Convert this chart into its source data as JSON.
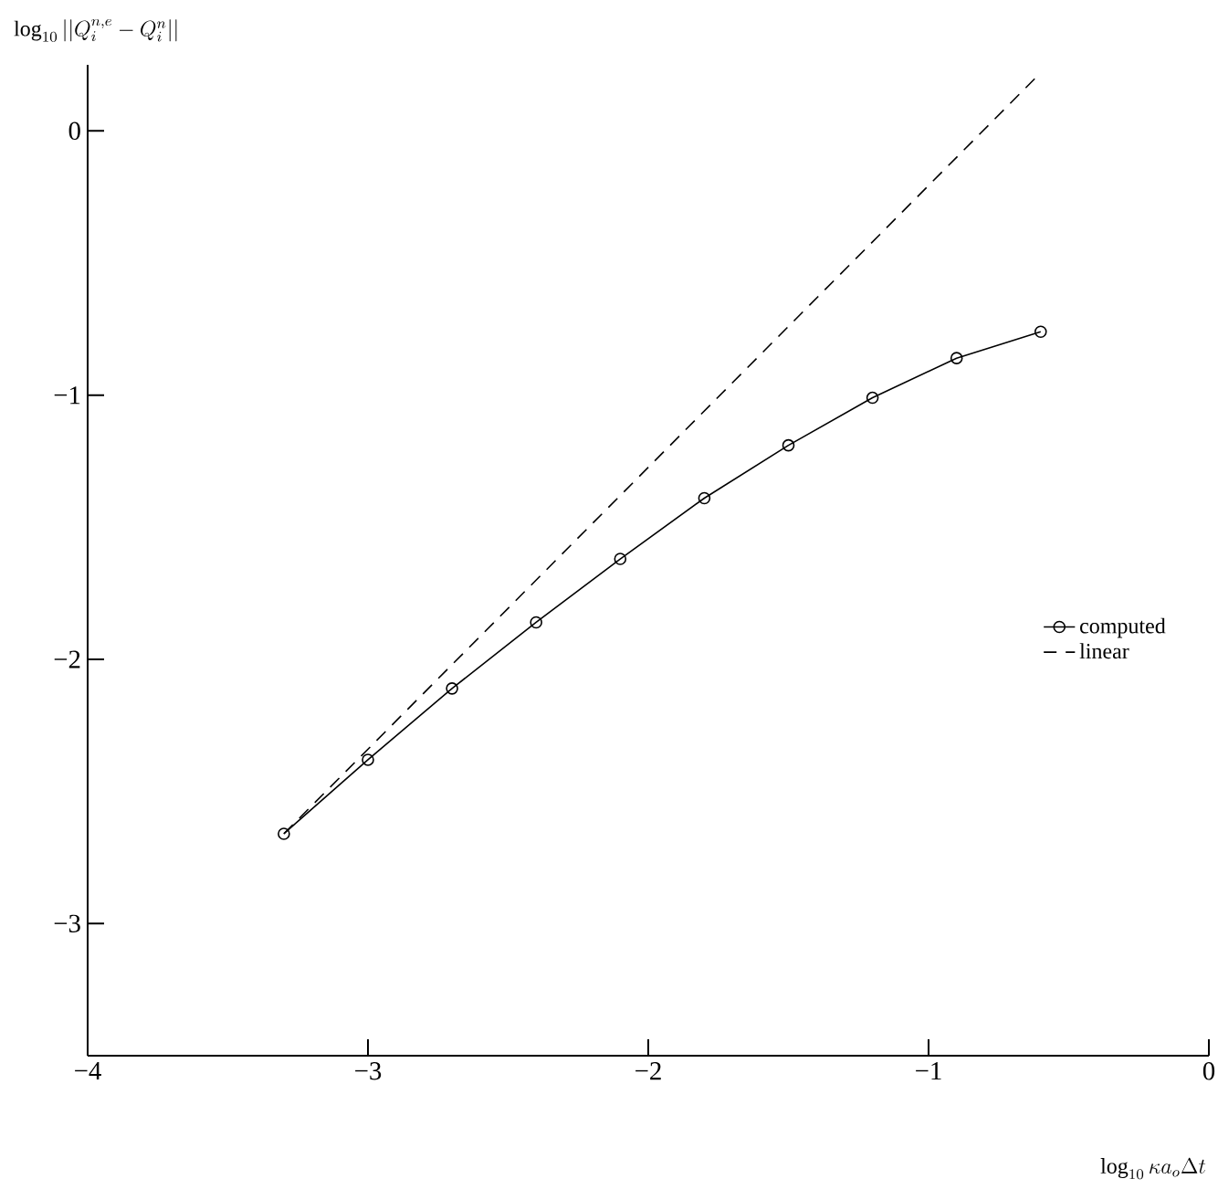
{
  "chart_data": {
    "type": "line",
    "xlabel": "\\log_{10} \\kappa a_o \\Delta t",
    "ylabel": "\\log_{10} ||Q_i^{n,e}-Q_i^n||",
    "xlim": [
      -4,
      0
    ],
    "ylim": [
      -3.5,
      0.25
    ],
    "xticks": [
      {
        "value": -4,
        "label": "−4"
      },
      {
        "value": -3,
        "label": "−3"
      },
      {
        "value": -2,
        "label": "−2"
      },
      {
        "value": -1,
        "label": "−1"
      },
      0
    ],
    "yticks": [
      {
        "value": -3,
        "label": "−3"
      },
      {
        "value": -2,
        "label": "−2"
      },
      {
        "value": -1,
        "label": "−1"
      },
      0
    ],
    "grid": false,
    "legend": "right",
    "series": [
      {
        "name": "computed",
        "color": "#000000",
        "marker": "circle",
        "line_style": "solid",
        "x": [
          -3.3,
          -3.0,
          -2.7,
          -2.4,
          -2.1,
          -1.8,
          -1.5,
          -1.2,
          -0.9,
          -0.6
        ],
        "values": [
          -2.66,
          -2.38,
          -2.11,
          -1.86,
          -1.62,
          -1.39,
          -1.19,
          -1.01,
          -0.86,
          -0.76
        ]
      },
      {
        "name": "linear",
        "color": "#000000",
        "marker": "none",
        "line_style": "dashed",
        "x": [
          -3.3,
          -0.6
        ],
        "values": [
          -2.66,
          0.22
        ]
      }
    ]
  }
}
